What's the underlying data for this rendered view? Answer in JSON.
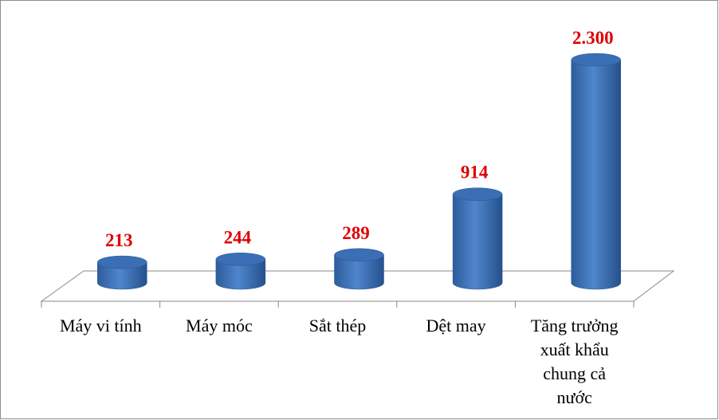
{
  "chart_data": {
    "type": "cylinder-bar",
    "categories": [
      "Máy vi tính",
      "Máy móc",
      "Sắt thép",
      "Dệt may",
      "Tăng trưởng xuất khẩu chung cả nước"
    ],
    "values": [
      213,
      244,
      289,
      914,
      2300
    ],
    "value_labels": [
      "213",
      "244",
      "289",
      "914",
      "2.300"
    ],
    "color": "#3a6fb5"
  }
}
